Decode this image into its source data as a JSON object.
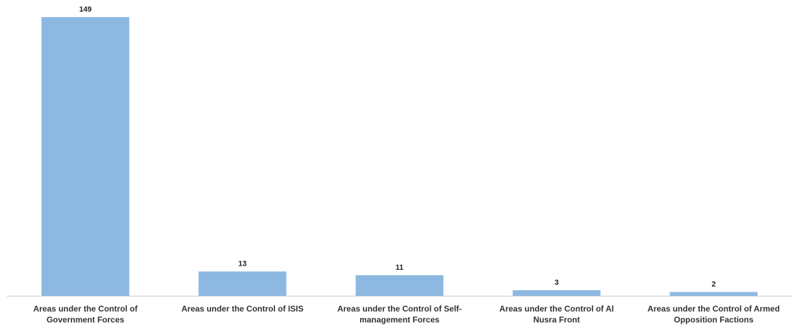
{
  "chart_data": {
    "type": "bar",
    "title": "",
    "xlabel": "",
    "ylabel": "",
    "ylim": [
      0,
      149
    ],
    "grid": false,
    "legend": "none",
    "categories": [
      [
        "Areas under the Control of",
        "Government Forces"
      ],
      [
        "Areas under the Control of ISIS"
      ],
      [
        "Areas under the Control of Self-",
        "management Forces"
      ],
      [
        "Areas under the Control of Al",
        "Nusra Front"
      ],
      [
        "Areas under the Control of Armed",
        "Opposition Factions"
      ]
    ],
    "values": [
      149,
      13,
      11,
      3,
      2
    ],
    "data_labels": [
      "149",
      "13",
      "11",
      "3",
      "2"
    ],
    "colors": {
      "bar": "#8db8e2",
      "axis": "#c8c8c8"
    }
  }
}
